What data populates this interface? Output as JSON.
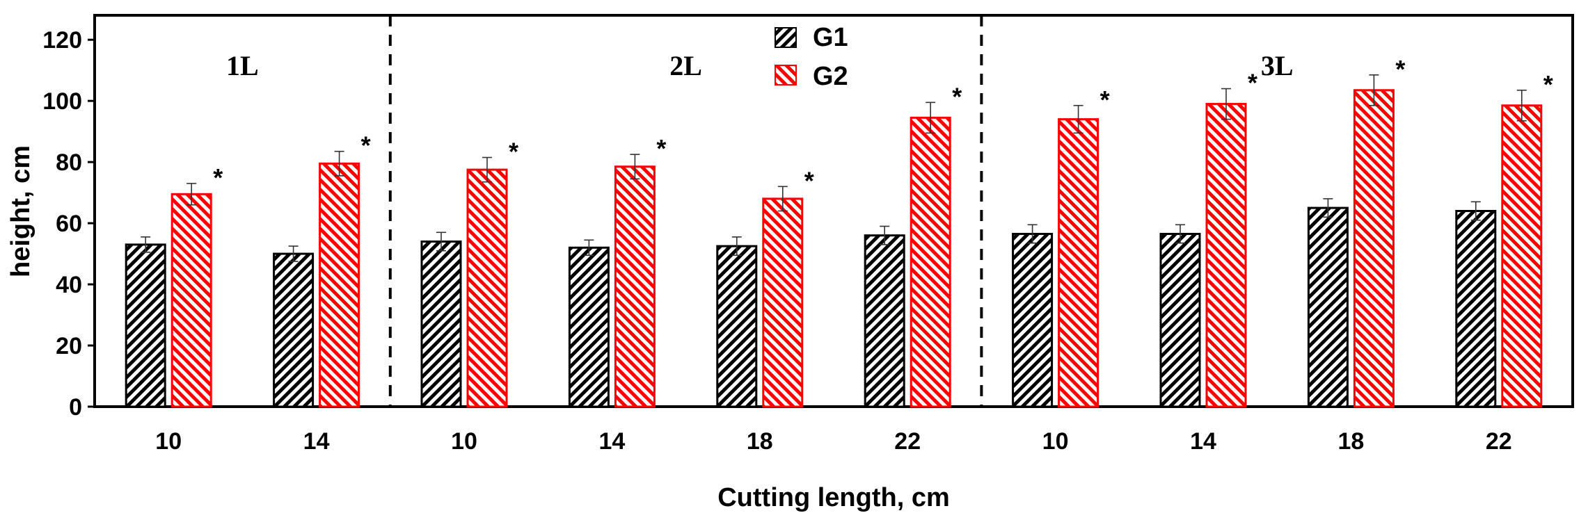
{
  "chart_data": {
    "type": "bar",
    "title": "",
    "xlabel": "Cutting length, cm",
    "ylabel": "height, cm",
    "ylim": [
      0,
      128
    ],
    "yticks": [
      "0",
      "20",
      "40",
      "60",
      "80",
      "100",
      "120"
    ],
    "ytick_values": [
      0,
      20,
      40,
      60,
      80,
      100,
      120
    ],
    "grid": false,
    "legend_position": "top-center",
    "groups": [
      {
        "label": "1L",
        "categories": [
          "10",
          "14"
        ]
      },
      {
        "label": "2L",
        "categories": [
          "10",
          "14",
          "18",
          "22"
        ]
      },
      {
        "label": "3L",
        "categories": [
          "10",
          "14",
          "18",
          "22"
        ]
      }
    ],
    "categories": [
      "10",
      "14",
      "10",
      "14",
      "18",
      "22",
      "10",
      "14",
      "18",
      "22"
    ],
    "series": [
      {
        "name": "G1",
        "color": "#000000",
        "pattern": "diagonal-hatch-down",
        "values": [
          53,
          50,
          54,
          52,
          52.5,
          56,
          56.5,
          56.5,
          65,
          64
        ],
        "errors": [
          2.5,
          2.5,
          3,
          2.5,
          3,
          3,
          3,
          3,
          3,
          3
        ]
      },
      {
        "name": "G2",
        "color": "#ff0000",
        "pattern": "diagonal-hatch-up",
        "values": [
          69.5,
          79.5,
          77.5,
          78.5,
          68,
          94.5,
          94,
          99,
          103.5,
          98.5
        ],
        "errors": [
          3.5,
          4,
          4,
          4,
          4,
          5,
          4.5,
          5,
          5,
          5
        ],
        "significance": [
          "*",
          "*",
          "*",
          "*",
          "*",
          "*",
          "*",
          "*",
          "*",
          "*"
        ]
      }
    ]
  }
}
